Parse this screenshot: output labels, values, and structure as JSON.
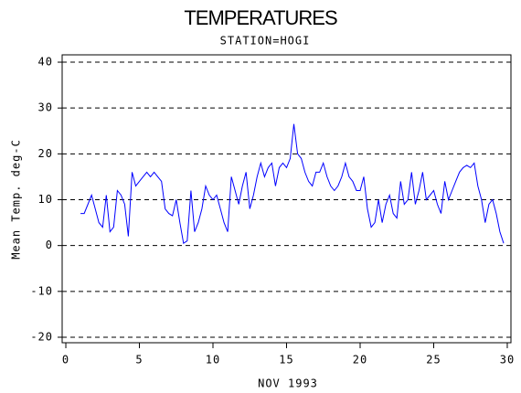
{
  "chart_data": {
    "type": "line",
    "title": "TEMPERATURES",
    "subtitle": "STATION=HOGI",
    "xlabel": "NOV 1993",
    "ylabel": "Mean Temp. deg-C",
    "xlim": [
      -0.25,
      30.25
    ],
    "ylim": [
      -21.2,
      41.6
    ],
    "xticks": [
      0,
      5,
      10,
      15,
      20,
      25,
      30
    ],
    "yticks": [
      -20,
      -10,
      0,
      10,
      20,
      30,
      40
    ],
    "grid": true,
    "x": [
      1,
      1.25,
      1.5,
      1.75,
      2,
      2.25,
      2.5,
      2.75,
      3,
      3.25,
      3.5,
      3.75,
      4,
      4.25,
      4.5,
      4.75,
      5,
      5.25,
      5.5,
      5.75,
      6,
      6.25,
      6.5,
      6.75,
      7,
      7.25,
      7.5,
      7.75,
      8,
      8.25,
      8.5,
      8.75,
      9,
      9.25,
      9.5,
      9.75,
      10,
      10.25,
      10.5,
      10.75,
      11,
      11.25,
      11.5,
      11.75,
      12,
      12.25,
      12.5,
      12.75,
      13,
      13.25,
      13.5,
      13.75,
      14,
      14.25,
      14.5,
      14.75,
      15,
      15.25,
      15.5,
      15.75,
      16,
      16.25,
      16.5,
      16.75,
      17,
      17.25,
      17.5,
      17.75,
      18,
      18.25,
      18.5,
      18.75,
      19,
      19.25,
      19.5,
      19.75,
      20,
      20.25,
      20.5,
      20.75,
      21,
      21.25,
      21.5,
      21.75,
      22,
      22.25,
      22.5,
      22.75,
      23,
      23.25,
      23.5,
      23.75,
      24,
      24.25,
      24.5,
      24.75,
      25,
      25.25,
      25.5,
      25.75,
      26,
      26.25,
      26.5,
      26.75,
      27,
      27.25,
      27.5,
      27.75,
      28,
      28.25,
      28.5,
      28.75,
      29,
      29.25,
      29.5,
      29.75
    ],
    "series": [
      {
        "color": "#0000ff",
        "values": [
          7,
          7,
          9,
          11,
          8,
          5,
          4,
          11,
          3,
          4,
          12,
          11,
          9,
          2,
          16,
          13,
          14,
          15,
          16,
          15,
          16,
          15,
          14,
          8,
          7,
          6.5,
          10,
          5,
          0.5,
          1,
          12,
          3,
          5,
          8,
          13,
          11,
          10,
          11,
          8,
          5,
          3,
          15,
          12,
          9,
          13,
          16,
          8,
          11,
          15,
          18,
          15,
          17,
          18,
          13,
          17,
          18,
          17,
          19,
          26.5,
          20,
          19,
          16,
          14,
          13,
          16,
          16,
          18,
          15,
          13,
          12,
          13,
          15,
          18,
          15,
          14,
          12,
          12,
          15,
          8,
          4,
          5,
          10,
          5,
          9,
          11,
          7,
          6,
          14,
          9,
          10,
          16,
          9,
          12,
          16,
          10,
          11,
          12,
          9,
          7,
          14,
          10,
          12,
          14,
          16,
          17,
          17.5,
          17,
          18,
          13,
          10,
          5,
          9,
          10,
          7,
          3,
          0.5
        ]
      }
    ]
  }
}
